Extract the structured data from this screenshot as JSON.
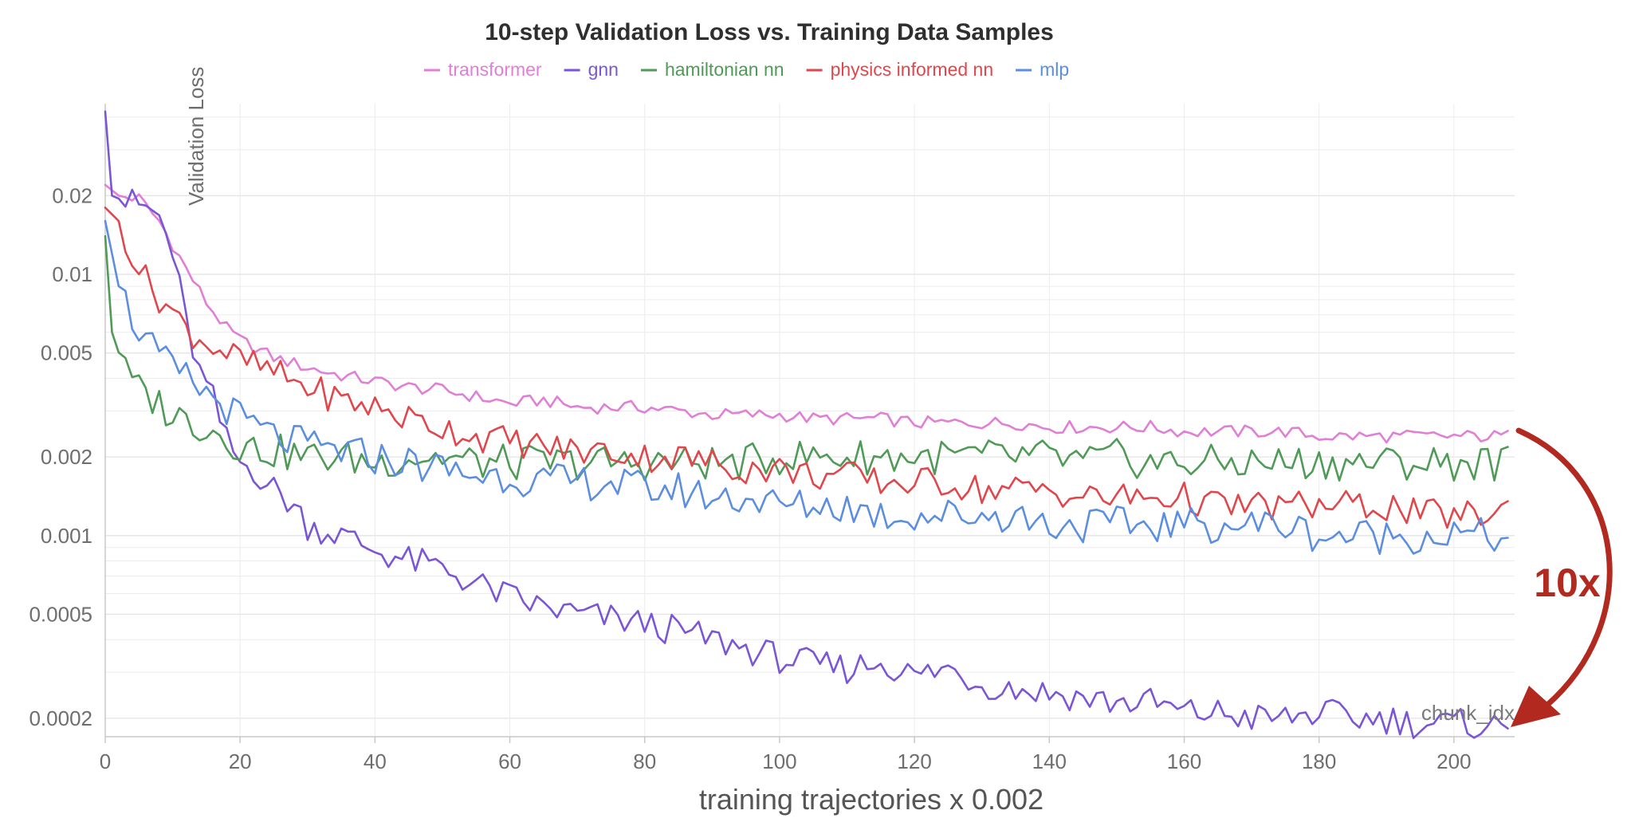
{
  "chart_data": {
    "type": "line",
    "title": "10-step Validation Loss vs. Training Data Samples",
    "ylabel": "Validation Loss",
    "xlabel": "training trajectories x 0.002",
    "x_corner_label": "chunk_idx",
    "yscale": "log",
    "xlim": [
      0,
      209
    ],
    "ylim": [
      0.00017,
      0.045
    ],
    "x_ticks": [
      0,
      20,
      40,
      60,
      80,
      100,
      120,
      140,
      160,
      180,
      200
    ],
    "x_tick_labels": [
      "0",
      "20",
      "40",
      "60",
      "80",
      "100",
      "120",
      "140",
      "160",
      "180",
      "200"
    ],
    "y_ticks": [
      0.0002,
      0.0005,
      0.001,
      0.002,
      0.005,
      0.01,
      0.02
    ],
    "y_tick_labels": [
      "0.0002",
      "0.0005",
      "0.001",
      "0.002",
      "0.005",
      "0.01",
      "0.02"
    ],
    "grid": true,
    "legend_position": "top-center",
    "series": [
      {
        "name": "transformer",
        "color": "#e07fd6",
        "points": [
          [
            0,
            0.022
          ],
          [
            2,
            0.02
          ],
          [
            5,
            0.0195
          ],
          [
            8,
            0.016
          ],
          [
            10,
            0.013
          ],
          [
            12,
            0.0105
          ],
          [
            15,
            0.0078
          ],
          [
            18,
            0.0062
          ],
          [
            20,
            0.0056
          ],
          [
            25,
            0.0048
          ],
          [
            30,
            0.0044
          ],
          [
            35,
            0.0041
          ],
          [
            40,
            0.0039
          ],
          [
            45,
            0.0037
          ],
          [
            50,
            0.0036
          ],
          [
            55,
            0.0034
          ],
          [
            60,
            0.0032
          ],
          [
            65,
            0.0033
          ],
          [
            70,
            0.0031
          ],
          [
            75,
            0.0031
          ],
          [
            80,
            0.0031
          ],
          [
            85,
            0.003
          ],
          [
            90,
            0.0029
          ],
          [
            95,
            0.0029
          ],
          [
            100,
            0.0029
          ],
          [
            105,
            0.0028
          ],
          [
            110,
            0.0028
          ],
          [
            115,
            0.0028
          ],
          [
            120,
            0.0027
          ],
          [
            125,
            0.0027
          ],
          [
            130,
            0.0027
          ],
          [
            135,
            0.0027
          ],
          [
            140,
            0.0026
          ],
          [
            145,
            0.0026
          ],
          [
            150,
            0.0026
          ],
          [
            155,
            0.0026
          ],
          [
            160,
            0.0025
          ],
          [
            165,
            0.0025
          ],
          [
            170,
            0.0025
          ],
          [
            175,
            0.0025
          ],
          [
            180,
            0.0024
          ],
          [
            185,
            0.0024
          ],
          [
            190,
            0.0024
          ],
          [
            195,
            0.0024
          ],
          [
            200,
            0.0024
          ],
          [
            208,
            0.0024
          ]
        ]
      },
      {
        "name": "gnn",
        "color": "#7a56d6",
        "points": [
          [
            0,
            0.042
          ],
          [
            1,
            0.02
          ],
          [
            3,
            0.019
          ],
          [
            6,
            0.018
          ],
          [
            8,
            0.0165
          ],
          [
            10,
            0.012
          ],
          [
            12,
            0.0065
          ],
          [
            14,
            0.0042
          ],
          [
            16,
            0.0033
          ],
          [
            18,
            0.0023
          ],
          [
            20,
            0.0019
          ],
          [
            22,
            0.0018
          ],
          [
            25,
            0.0015
          ],
          [
            28,
            0.0013
          ],
          [
            30,
            0.0011
          ],
          [
            35,
            0.001
          ],
          [
            40,
            0.00088
          ],
          [
            45,
            0.0008
          ],
          [
            50,
            0.00075
          ],
          [
            55,
            0.00065
          ],
          [
            60,
            0.00058
          ],
          [
            65,
            0.00053
          ],
          [
            70,
            0.0005
          ],
          [
            75,
            0.00048
          ],
          [
            80,
            0.00046
          ],
          [
            85,
            0.00043
          ],
          [
            90,
            0.0004
          ],
          [
            95,
            0.00037
          ],
          [
            100,
            0.00034
          ],
          [
            105,
            0.00032
          ],
          [
            110,
            0.00031
          ],
          [
            115,
            0.00033
          ],
          [
            120,
            0.00029
          ],
          [
            125,
            0.00031
          ],
          [
            130,
            0.00027
          ],
          [
            135,
            0.00026
          ],
          [
            140,
            0.00025
          ],
          [
            145,
            0.00024
          ],
          [
            150,
            0.00023
          ],
          [
            155,
            0.00023
          ],
          [
            160,
            0.00021
          ],
          [
            165,
            0.00021
          ],
          [
            170,
            0.0002
          ],
          [
            175,
            0.0002
          ],
          [
            180,
            0.00021
          ],
          [
            185,
            0.0002
          ],
          [
            190,
            0.0002
          ],
          [
            195,
            0.00019
          ],
          [
            200,
            0.00019
          ],
          [
            205,
            0.00019
          ],
          [
            208,
            0.00018
          ]
        ]
      },
      {
        "name": "hamiltonian nn",
        "color": "#4f9a57",
        "points": [
          [
            0,
            0.014
          ],
          [
            1,
            0.006
          ],
          [
            3,
            0.0042
          ],
          [
            5,
            0.0036
          ],
          [
            8,
            0.0032
          ],
          [
            10,
            0.0029
          ],
          [
            12,
            0.0028
          ],
          [
            15,
            0.0026
          ],
          [
            18,
            0.0024
          ],
          [
            20,
            0.0022
          ],
          [
            25,
            0.0021
          ],
          [
            30,
            0.002
          ],
          [
            35,
            0.002
          ],
          [
            40,
            0.0019
          ],
          [
            45,
            0.002
          ],
          [
            50,
            0.002
          ],
          [
            55,
            0.0019
          ],
          [
            60,
            0.0019
          ],
          [
            65,
            0.0019
          ],
          [
            70,
            0.0019
          ],
          [
            75,
            0.0019
          ],
          [
            80,
            0.0019
          ],
          [
            85,
            0.0019
          ],
          [
            90,
            0.0019
          ],
          [
            95,
            0.0019
          ],
          [
            100,
            0.002
          ],
          [
            105,
            0.002
          ],
          [
            110,
            0.002
          ],
          [
            115,
            0.002
          ],
          [
            120,
            0.002
          ],
          [
            125,
            0.002
          ],
          [
            130,
            0.002
          ],
          [
            135,
            0.002
          ],
          [
            140,
            0.002
          ],
          [
            145,
            0.0019
          ],
          [
            150,
            0.002
          ],
          [
            155,
            0.0019
          ],
          [
            160,
            0.0019
          ],
          [
            165,
            0.0019
          ],
          [
            170,
            0.0019
          ],
          [
            175,
            0.0019
          ],
          [
            180,
            0.0019
          ],
          [
            185,
            0.0019
          ],
          [
            190,
            0.0019
          ],
          [
            195,
            0.0019
          ],
          [
            200,
            0.0019
          ],
          [
            208,
            0.0019
          ]
        ]
      },
      {
        "name": "physics informed nn",
        "color": "#e0474c",
        "points": [
          [
            0,
            0.018
          ],
          [
            2,
            0.016
          ],
          [
            4,
            0.012
          ],
          [
            6,
            0.0095
          ],
          [
            8,
            0.0082
          ],
          [
            10,
            0.0072
          ],
          [
            12,
            0.0062
          ],
          [
            15,
            0.0055
          ],
          [
            18,
            0.005
          ],
          [
            20,
            0.0047
          ],
          [
            25,
            0.0042
          ],
          [
            30,
            0.0037
          ],
          [
            35,
            0.0033
          ],
          [
            40,
            0.0031
          ],
          [
            45,
            0.0028
          ],
          [
            50,
            0.0026
          ],
          [
            55,
            0.0024
          ],
          [
            60,
            0.0023
          ],
          [
            65,
            0.0022
          ],
          [
            70,
            0.0021
          ],
          [
            75,
            0.0021
          ],
          [
            80,
            0.002
          ],
          [
            85,
            0.002
          ],
          [
            90,
            0.0019
          ],
          [
            95,
            0.0018
          ],
          [
            100,
            0.0018
          ],
          [
            105,
            0.0017
          ],
          [
            110,
            0.0017
          ],
          [
            115,
            0.0016
          ],
          [
            120,
            0.0016
          ],
          [
            125,
            0.0016
          ],
          [
            130,
            0.0015
          ],
          [
            135,
            0.0015
          ],
          [
            140,
            0.0015
          ],
          [
            145,
            0.0014
          ],
          [
            150,
            0.0014
          ],
          [
            155,
            0.0014
          ],
          [
            160,
            0.0014
          ],
          [
            165,
            0.0013
          ],
          [
            170,
            0.0013
          ],
          [
            175,
            0.0013
          ],
          [
            180,
            0.0013
          ],
          [
            185,
            0.0013
          ],
          [
            190,
            0.0013
          ],
          [
            195,
            0.0012
          ],
          [
            200,
            0.0012
          ],
          [
            205,
            0.0012
          ],
          [
            208,
            0.0013
          ]
        ]
      },
      {
        "name": "mlp",
        "color": "#5b8ee0",
        "points": [
          [
            0,
            0.016
          ],
          [
            2,
            0.009
          ],
          [
            4,
            0.0068
          ],
          [
            6,
            0.0056
          ],
          [
            8,
            0.0048
          ],
          [
            10,
            0.0043
          ],
          [
            12,
            0.004
          ],
          [
            15,
            0.0035
          ],
          [
            18,
            0.0031
          ],
          [
            20,
            0.0028
          ],
          [
            25,
            0.0024
          ],
          [
            30,
            0.0022
          ],
          [
            35,
            0.0021
          ],
          [
            40,
            0.002
          ],
          [
            45,
            0.0019
          ],
          [
            50,
            0.0018
          ],
          [
            55,
            0.0017
          ],
          [
            60,
            0.0017
          ],
          [
            65,
            0.0016
          ],
          [
            70,
            0.0016
          ],
          [
            75,
            0.0016
          ],
          [
            80,
            0.0015
          ],
          [
            85,
            0.0015
          ],
          [
            90,
            0.0014
          ],
          [
            95,
            0.0014
          ],
          [
            100,
            0.0013
          ],
          [
            105,
            0.0013
          ],
          [
            110,
            0.0013
          ],
          [
            115,
            0.0012
          ],
          [
            120,
            0.0012
          ],
          [
            125,
            0.0012
          ],
          [
            130,
            0.0012
          ],
          [
            135,
            0.0012
          ],
          [
            140,
            0.0011
          ],
          [
            145,
            0.0011
          ],
          [
            150,
            0.0011
          ],
          [
            155,
            0.0011
          ],
          [
            160,
            0.0011
          ],
          [
            165,
            0.0011
          ],
          [
            170,
            0.0011
          ],
          [
            175,
            0.0011
          ],
          [
            180,
            0.001
          ],
          [
            185,
            0.001
          ],
          [
            190,
            0.001
          ],
          [
            195,
            0.001
          ],
          [
            200,
            0.001
          ],
          [
            205,
            0.001
          ],
          [
            208,
            0.00095
          ]
        ]
      }
    ],
    "annotation": {
      "label": "10x",
      "color": "#b22a1f",
      "from_series": "transformer",
      "to_series": "gnn"
    }
  }
}
